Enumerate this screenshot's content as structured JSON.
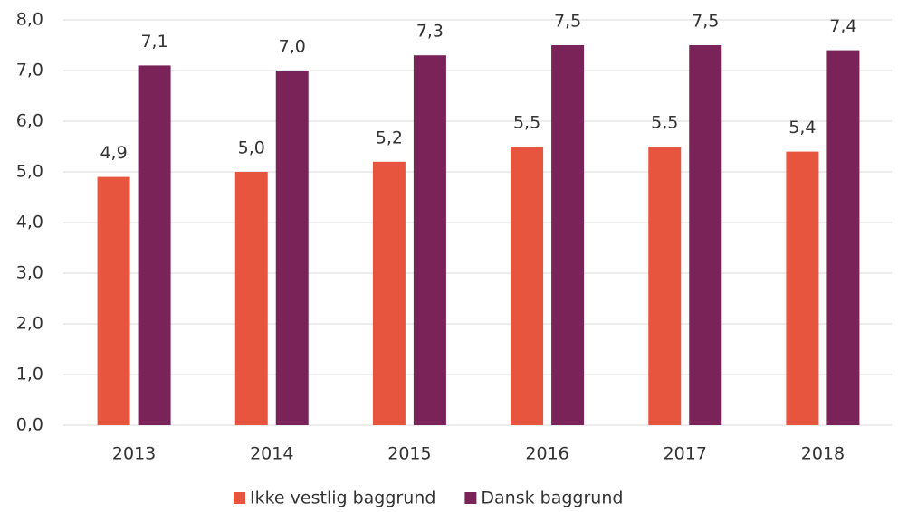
{
  "chart_data": {
    "type": "bar",
    "categories": [
      "2013",
      "2014",
      "2015",
      "2016",
      "2017",
      "2018"
    ],
    "series": [
      {
        "name": "Ikke vestlig baggrund",
        "color": "#e8553e",
        "values": [
          4.9,
          5.0,
          5.2,
          5.5,
          5.5,
          5.4
        ],
        "value_labels": [
          "4,9",
          "5,0",
          "5,2",
          "5,5",
          "5,5",
          "5,4"
        ]
      },
      {
        "name": "Dansk baggrund",
        "color": "#7a2359",
        "values": [
          7.1,
          7.0,
          7.3,
          7.5,
          7.5,
          7.4
        ],
        "value_labels": [
          "7,1",
          "7,0",
          "7,3",
          "7,5",
          "7,5",
          "7,4"
        ]
      }
    ],
    "ylim": [
      0,
      8
    ],
    "yticks": [
      {
        "value": 0,
        "label": "0,0"
      },
      {
        "value": 1,
        "label": "1,0"
      },
      {
        "value": 2,
        "label": "2,0"
      },
      {
        "value": 3,
        "label": "3,0"
      },
      {
        "value": 4,
        "label": "4,0"
      },
      {
        "value": 5,
        "label": "5,0"
      },
      {
        "value": 6,
        "label": "6,0"
      },
      {
        "value": 7,
        "label": "7,0"
      },
      {
        "value": 8,
        "label": "8,0"
      }
    ],
    "grid": true,
    "legend": "bottom"
  }
}
